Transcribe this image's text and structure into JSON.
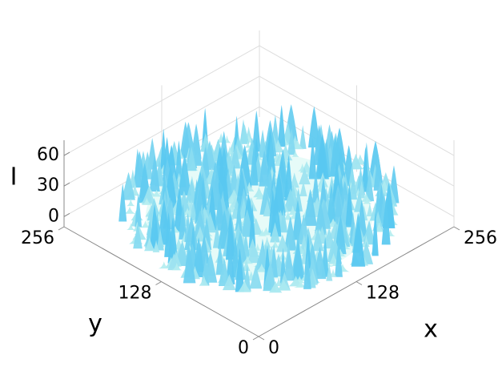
{
  "chart_data": {
    "type": "surface3d",
    "x_label": "x",
    "y_label": "y",
    "z_label": "I",
    "xlim": [
      0,
      256
    ],
    "ylim": [
      0,
      256
    ],
    "zlim": [
      -10,
      75
    ],
    "xticks": [
      0,
      128,
      256
    ],
    "yticks": [
      0,
      128,
      256
    ],
    "zticks": [
      0,
      30,
      60
    ],
    "grid": true
  }
}
